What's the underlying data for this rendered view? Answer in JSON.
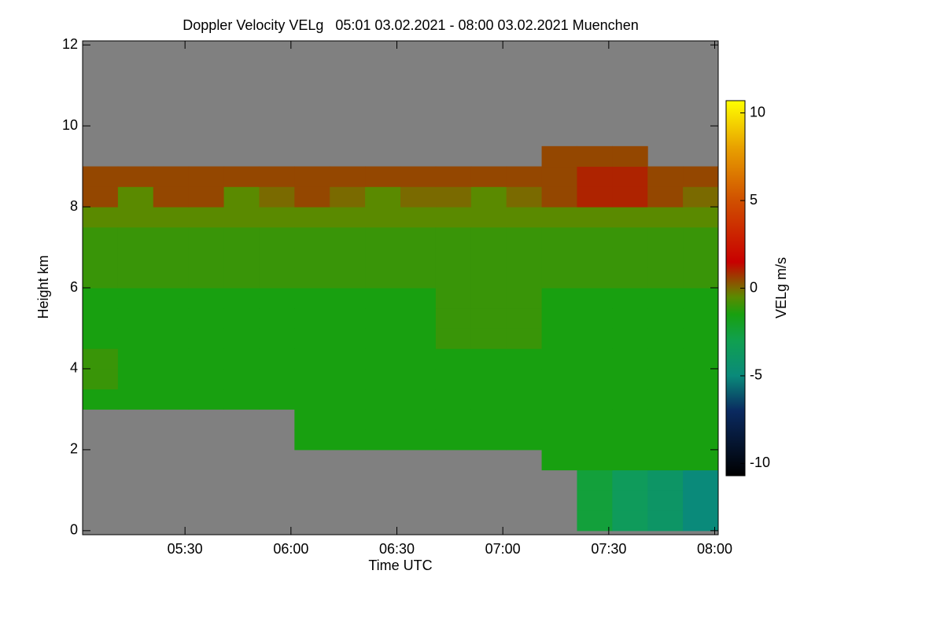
{
  "chart_data": {
    "type": "heatmap",
    "title": "Doppler Velocity VELg   05:01 03.02.2021 - 08:00 03.02.2021 Muenchen",
    "xlabel": "Time UTC",
    "ylabel": "Height km",
    "colorbar_label": "VELg m/s",
    "xlim": [
      301,
      481
    ],
    "xticks": [
      {
        "value": 330,
        "label": "05:30"
      },
      {
        "value": 360,
        "label": "06:00"
      },
      {
        "value": 390,
        "label": "06:30"
      },
      {
        "value": 420,
        "label": "07:00"
      },
      {
        "value": 450,
        "label": "07:30"
      },
      {
        "value": 480,
        "label": "08:00"
      }
    ],
    "ylim": [
      -0.1,
      12.1
    ],
    "yticks": [
      0,
      2,
      4,
      6,
      8,
      10,
      12
    ],
    "zlim": [
      -10.7,
      10.7
    ],
    "zticks": [
      -10,
      -5,
      0,
      5,
      10
    ],
    "background_color": "#808080",
    "colorscale": [
      [
        -10.7,
        "#000000"
      ],
      [
        -7,
        "#0a2a60"
      ],
      [
        -5,
        "#0a8a7a"
      ],
      [
        -3,
        "#10a050"
      ],
      [
        -1.5,
        "#18a010"
      ],
      [
        -0.5,
        "#5a8a00"
      ],
      [
        0,
        "#7a6a00"
      ],
      [
        1.5,
        "#c80000"
      ],
      [
        5,
        "#d05000"
      ],
      [
        8,
        "#e8a000"
      ],
      [
        10.7,
        "#ffff00"
      ]
    ],
    "x_edges": [
      301,
      311,
      321,
      331,
      341,
      351,
      361,
      371,
      381,
      391,
      401,
      411,
      421,
      431,
      441,
      451,
      461,
      471,
      481
    ],
    "y_edges": [
      0,
      0.5,
      1,
      1.5,
      2,
      2.5,
      3,
      3.5,
      4,
      4.5,
      5,
      5.5,
      6,
      6.5,
      7,
      7.5,
      8,
      8.5,
      9,
      9.5
    ],
    "z": [
      [
        null,
        null,
        null,
        null,
        null,
        null,
        null,
        null,
        null,
        null,
        null,
        null,
        null,
        null,
        -2.5,
        -3.5,
        -4,
        -5
      ],
      [
        null,
        null,
        null,
        null,
        null,
        null,
        null,
        null,
        null,
        null,
        null,
        null,
        null,
        null,
        -2.5,
        -3.5,
        -4,
        -5
      ],
      [
        null,
        null,
        null,
        null,
        null,
        null,
        null,
        null,
        null,
        null,
        null,
        null,
        null,
        null,
        -2.5,
        -3.5,
        -4,
        -5
      ],
      [
        null,
        null,
        null,
        null,
        null,
        null,
        null,
        null,
        null,
        null,
        null,
        null,
        null,
        -1.5,
        -1.5,
        -1.5,
        -1.5,
        -1.5
      ],
      [
        null,
        null,
        null,
        null,
        null,
        null,
        -1.5,
        -1.5,
        -1.5,
        -1.5,
        -1.5,
        -1.5,
        -1.5,
        -1.5,
        -1.5,
        -1.5,
        -1.5,
        -1.5
      ],
      [
        null,
        null,
        null,
        null,
        null,
        null,
        -1.5,
        -1.5,
        -1.5,
        -1.5,
        -1.5,
        -1.5,
        -1.5,
        -1.5,
        -1.5,
        -1.5,
        -1.5,
        -1.5
      ],
      [
        -1.5,
        -1.5,
        -1.5,
        -1.5,
        -1.5,
        -1.5,
        -1.5,
        -1.5,
        -1.5,
        -1.5,
        -1.5,
        -1.5,
        -1.5,
        -1.5,
        -1.5,
        -1.5,
        -1.5,
        -1.5
      ],
      [
        -1,
        -1.5,
        -1.5,
        -1.5,
        -1.5,
        -1.5,
        -1.5,
        -1.5,
        -1.5,
        -1.5,
        -1.5,
        -1.5,
        -1.5,
        -1.5,
        -1.5,
        -1.5,
        -1.5,
        -1.5
      ],
      [
        -1,
        -1.5,
        -1.5,
        -1.5,
        -1.5,
        -1.5,
        -1.5,
        -1.5,
        -1.5,
        -1.5,
        -1.5,
        -1.5,
        -1.5,
        -1.5,
        -1.5,
        -1.5,
        -1.5,
        -1.5
      ],
      [
        -1.5,
        -1.5,
        -1.5,
        -1.5,
        -1.5,
        -1.5,
        -1.5,
        -1.5,
        -1.5,
        -1.5,
        -1,
        -1,
        -1,
        -1.5,
        -1.5,
        -1.5,
        -1.5,
        -1.5
      ],
      [
        -1.5,
        -1.5,
        -1.5,
        -1.5,
        -1.5,
        -1.5,
        -1.5,
        -1.5,
        -1.5,
        -1.5,
        -1,
        -1,
        -1,
        -1.5,
        -1.5,
        -1.5,
        -1.5,
        -1.5
      ],
      [
        -1.5,
        -1.5,
        -1.5,
        -1.5,
        -1.5,
        -1.5,
        -1.5,
        -1.5,
        -1.5,
        -1.5,
        -1,
        -1,
        -1,
        -1.5,
        -1.5,
        -1.5,
        -1.5,
        -1.5
      ],
      [
        -1,
        -1,
        -1,
        -1,
        -1,
        -1,
        -1,
        -1,
        -1,
        -1,
        -1,
        -1,
        -1,
        -1,
        -1,
        -1,
        -1,
        -1
      ],
      [
        -1,
        -1,
        -1,
        -1,
        -1,
        -1,
        -1,
        -1,
        -1,
        -1,
        -1,
        -1,
        -1,
        -1,
        -1,
        -1,
        -1,
        -1
      ],
      [
        -1,
        -1,
        -1,
        -1,
        -1,
        -1,
        -1,
        -1,
        -1,
        -1,
        -1,
        -1,
        -1,
        -1,
        -1,
        -1,
        -1,
        -1
      ],
      [
        -0.5,
        -0.5,
        -0.5,
        -0.5,
        -0.5,
        -0.5,
        -0.5,
        -0.5,
        -0.5,
        -0.5,
        -0.5,
        -0.5,
        -0.5,
        -0.5,
        -0.5,
        -0.5,
        -0.5,
        -0.5
      ],
      [
        0.5,
        -0.5,
        0.5,
        0.5,
        -0.5,
        0,
        0.5,
        0,
        -0.5,
        0,
        0,
        -0.5,
        0,
        0.5,
        1,
        1,
        0.5,
        0
      ],
      [
        0.5,
        0.5,
        0.5,
        0.5,
        0.5,
        0.5,
        0.5,
        0.5,
        0.5,
        0.5,
        0.5,
        0.5,
        0.5,
        0.5,
        1,
        1,
        0.5,
        0.5
      ],
      [
        null,
        null,
        null,
        null,
        null,
        null,
        null,
        null,
        null,
        null,
        null,
        null,
        null,
        0.5,
        0.5,
        0.5,
        null,
        null
      ]
    ]
  }
}
